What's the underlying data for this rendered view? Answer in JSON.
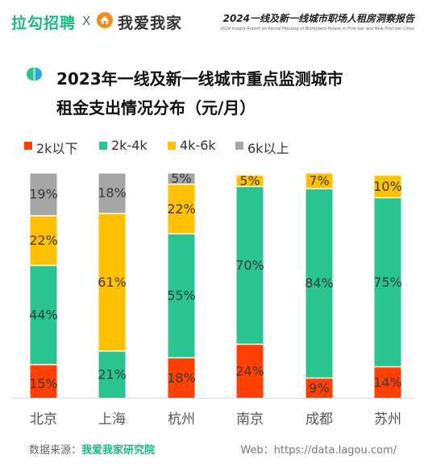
{
  "header": {
    "brand_lagou": "拉勾招聘",
    "separator": "X",
    "brand_5i5j": "我爱我家",
    "report_title": "2024一线及新一线城市职场人租房洞察报告",
    "report_subtitle": "2024 Insight Report on Rental Housing of Workplace People in First-tier and New First-tier Cities"
  },
  "chart_title": {
    "line1": "2023年一线及新一线城市重点监测城市",
    "line2": "租金支出情况分布（元/月）"
  },
  "colors": {
    "red": "#ff4000",
    "green": "#29c48f",
    "yellow": "#ffc000",
    "gray": "#a5a5a5",
    "brand_green": "#19b985"
  },
  "chart_data": {
    "type": "bar",
    "stacked": true,
    "categories": [
      "北京",
      "上海",
      "杭州",
      "南京",
      "成都",
      "苏州"
    ],
    "series": [
      {
        "name": "2k以下",
        "color": "#ff4000",
        "values": [
          15,
          0,
          18,
          24,
          9,
          14
        ]
      },
      {
        "name": "2k-4k",
        "color": "#29c48f",
        "values": [
          44,
          21,
          55,
          70,
          84,
          75
        ]
      },
      {
        "name": "4k-6k",
        "color": "#ffc000",
        "values": [
          22,
          61,
          22,
          5,
          7,
          10
        ]
      },
      {
        "name": "6k以上",
        "color": "#a5a5a5",
        "values": [
          19,
          18,
          5,
          0,
          0,
          0
        ]
      }
    ],
    "value_labels": [
      [
        "15%",
        "0%",
        "18%",
        "24%",
        "9%",
        "14%"
      ],
      [
        "44%",
        "21%",
        "55%",
        "70%",
        "84%",
        "75%"
      ],
      [
        "22%",
        "61%",
        "22%",
        "5%",
        "7%",
        "10%"
      ],
      [
        "19%",
        "18%",
        "5%",
        "",
        "",
        ""
      ]
    ],
    "ylim": [
      0,
      100
    ],
    "legend_position": "top-left",
    "grid": false
  },
  "footer": {
    "source_label": "数据来源：",
    "source_name": "我爱我家研究院",
    "web": "Web：https://data.lagou.com/"
  }
}
